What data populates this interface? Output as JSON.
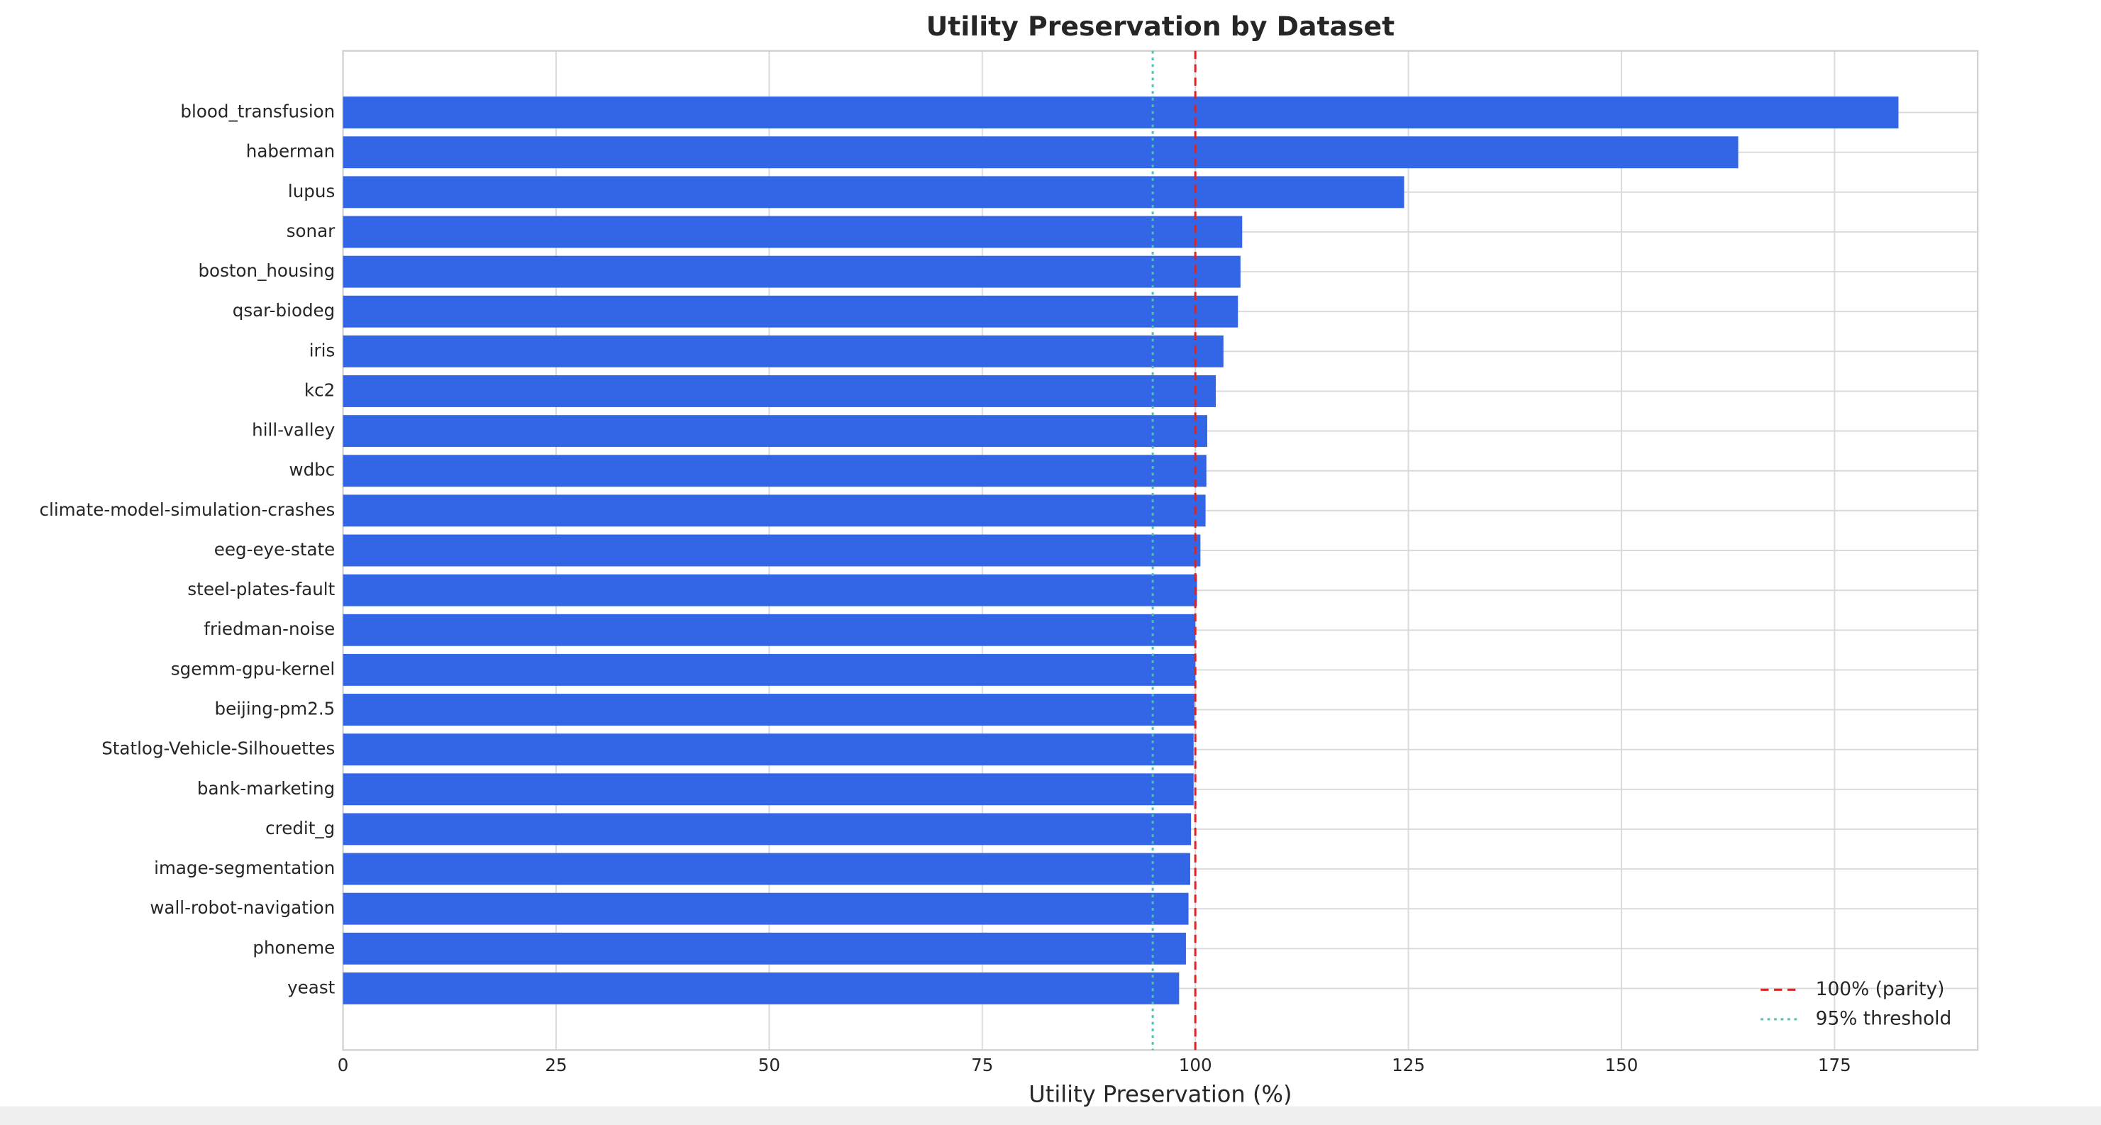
{
  "chart_data": {
    "type": "barh",
    "title": "Utility Preservation by Dataset",
    "xlabel": "Utility Preservation (%)",
    "categories": [
      "blood_transfusion",
      "haberman",
      "lupus",
      "sonar",
      "boston_housing",
      "qsar-biodeg",
      "iris",
      "kc2",
      "hill-valley",
      "wdbc",
      "climate-model-simulation-crashes",
      "eeg-eye-state",
      "steel-plates-fault",
      "friedman-noise",
      "sgemm-gpu-kernel",
      "beijing-pm2.5",
      "Statlog-Vehicle-Silhouettes",
      "bank-marketing",
      "credit_g",
      "image-segmentation",
      "wall-robot-navigation",
      "phoneme",
      "yeast"
    ],
    "values": [
      182.5,
      163.7,
      124.5,
      105.5,
      105.3,
      105.0,
      103.3,
      102.4,
      101.4,
      101.3,
      101.2,
      100.6,
      100.2,
      100.0,
      100.0,
      99.9,
      99.8,
      99.8,
      99.5,
      99.4,
      99.2,
      98.9,
      98.1
    ],
    "color": "#3366e6",
    "xlim": [
      0,
      191.8
    ],
    "xticks": [
      0,
      25,
      50,
      75,
      100,
      125,
      150,
      175
    ],
    "grid": true,
    "reference_lines": [
      {
        "value": 100,
        "label": "100% (parity)",
        "color": "#d62728",
        "style": "dashed"
      },
      {
        "value": 95,
        "label": "95% threshold",
        "color": "#4fc1b0",
        "style": "dotted"
      }
    ],
    "legend": "lower right"
  }
}
